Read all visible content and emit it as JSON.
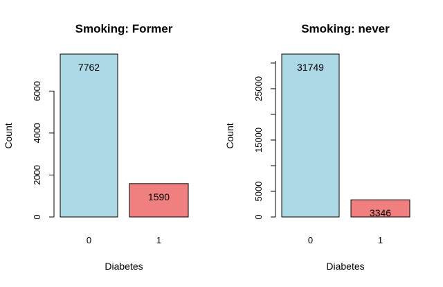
{
  "chart_data": [
    {
      "type": "bar",
      "title": "Smoking: Former",
      "xlabel": "Diabetes",
      "ylabel": "Count",
      "categories": [
        "0",
        "1"
      ],
      "values": [
        7762,
        1590
      ],
      "bar_labels": [
        "7762",
        "1590"
      ],
      "colors": [
        "#add8e6",
        "#f08080"
      ],
      "ylim": [
        0,
        7762
      ],
      "yticks": [
        0,
        2000,
        4000,
        6000
      ],
      "ytick_labels": [
        "0",
        "2000",
        "4000",
        "6000"
      ],
      "grid": false,
      "legend": "none"
    },
    {
      "type": "bar",
      "title": "Smoking: never",
      "xlabel": "Diabetes",
      "ylabel": "Count",
      "categories": [
        "0",
        "1"
      ],
      "values": [
        31749,
        3346
      ],
      "bar_labels": [
        "31749",
        "3346"
      ],
      "colors": [
        "#add8e6",
        "#f08080"
      ],
      "ylim": [
        0,
        31749
      ],
      "yticks": [
        0,
        5000,
        10000,
        15000,
        20000,
        25000,
        30000
      ],
      "ytick_labels": [
        "0",
        "5000",
        "",
        "15000",
        "",
        "25000",
        ""
      ],
      "grid": false,
      "legend": "none"
    }
  ]
}
